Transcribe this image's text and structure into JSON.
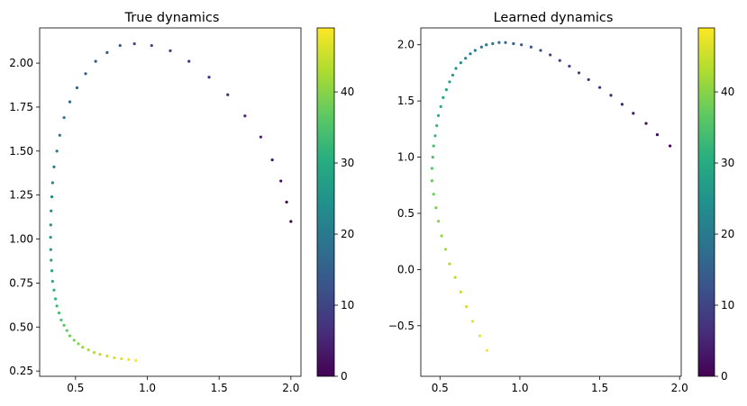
{
  "chart_data": [
    {
      "type": "scatter",
      "title": "True dynamics",
      "xlabel": "",
      "ylabel": "",
      "xlim": [
        0.25,
        2.07
      ],
      "ylim": [
        0.22,
        2.2
      ],
      "xticks": [
        "0.5",
        "1.0",
        "1.5",
        "2.0"
      ],
      "yticks": [
        "0.25",
        "0.50",
        "0.75",
        "1.00",
        "1.25",
        "1.50",
        "1.75",
        "2.00"
      ],
      "color_by": "time step (0-49)",
      "grid": false,
      "points": {
        "x": [
          2.0,
          1.97,
          1.93,
          1.87,
          1.79,
          1.68,
          1.56,
          1.43,
          1.29,
          1.16,
          1.03,
          0.91,
          0.81,
          0.72,
          0.64,
          0.57,
          0.51,
          0.46,
          0.42,
          0.39,
          0.37,
          0.35,
          0.34,
          0.335,
          0.33,
          0.327,
          0.326,
          0.327,
          0.33,
          0.335,
          0.34,
          0.35,
          0.36,
          0.37,
          0.385,
          0.4,
          0.42,
          0.44,
          0.46,
          0.49,
          0.52,
          0.55,
          0.59,
          0.63,
          0.67,
          0.72,
          0.77,
          0.82,
          0.87,
          0.92
        ],
        "y": [
          1.1,
          1.21,
          1.33,
          1.45,
          1.58,
          1.7,
          1.82,
          1.92,
          2.01,
          2.07,
          2.1,
          2.11,
          2.1,
          2.06,
          2.01,
          1.94,
          1.86,
          1.78,
          1.69,
          1.59,
          1.5,
          1.41,
          1.32,
          1.24,
          1.16,
          1.08,
          1.01,
          0.94,
          0.88,
          0.82,
          0.76,
          0.71,
          0.66,
          0.62,
          0.58,
          0.54,
          0.51,
          0.48,
          0.45,
          0.425,
          0.405,
          0.385,
          0.37,
          0.355,
          0.345,
          0.335,
          0.325,
          0.32,
          0.315,
          0.31
        ]
      },
      "colorbar": {
        "min": 0,
        "max": 49,
        "ticks": [
          "0",
          "10",
          "20",
          "30",
          "40"
        ]
      }
    },
    {
      "type": "scatter",
      "title": "Learned dynamics",
      "xlabel": "",
      "ylabel": "",
      "xlim": [
        0.38,
        2.01
      ],
      "ylim": [
        -0.95,
        2.15
      ],
      "xticks": [
        "0.5",
        "1.0",
        "1.5",
        "2.0"
      ],
      "yticks": [
        "−0.5",
        "0.0",
        "0.5",
        "1.0",
        "1.5",
        "2.0"
      ],
      "color_by": "time step (0-49)",
      "grid": false,
      "points": {
        "x": [
          1.94,
          1.86,
          1.79,
          1.71,
          1.64,
          1.57,
          1.5,
          1.43,
          1.37,
          1.31,
          1.25,
          1.19,
          1.13,
          1.07,
          1.01,
          0.96,
          0.91,
          0.87,
          0.83,
          0.79,
          0.76,
          0.72,
          0.69,
          0.66,
          0.63,
          0.6,
          0.58,
          0.56,
          0.54,
          0.52,
          0.505,
          0.49,
          0.48,
          0.47,
          0.46,
          0.455,
          0.45,
          0.45,
          0.46,
          0.475,
          0.49,
          0.51,
          0.535,
          0.56,
          0.595,
          0.63,
          0.665,
          0.705,
          0.75,
          0.795
        ],
        "y": [
          1.1,
          1.2,
          1.3,
          1.39,
          1.47,
          1.55,
          1.62,
          1.69,
          1.75,
          1.81,
          1.86,
          1.91,
          1.95,
          1.98,
          2.0,
          2.01,
          2.02,
          2.02,
          2.01,
          2.0,
          1.98,
          1.95,
          1.92,
          1.88,
          1.84,
          1.79,
          1.73,
          1.67,
          1.6,
          1.53,
          1.45,
          1.37,
          1.28,
          1.19,
          1.1,
          1.0,
          0.9,
          0.79,
          0.67,
          0.55,
          0.43,
          0.3,
          0.18,
          0.05,
          -0.07,
          -0.2,
          -0.33,
          -0.46,
          -0.59,
          -0.72
        ]
      },
      "colorbar": {
        "min": 0,
        "max": 49,
        "ticks": [
          "0",
          "10",
          "20",
          "30",
          "40"
        ]
      }
    }
  ]
}
